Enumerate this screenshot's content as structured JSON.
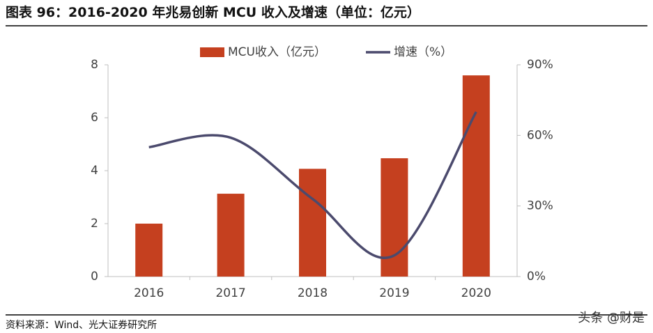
{
  "chart_data": {
    "type": "bar-line",
    "title": "图表 96：2016-2020 年兆易创新 MCU 收入及增速（单位：亿元）",
    "source": "资料来源：Wind、光大证券研究所",
    "watermark": "头条 @财是",
    "categories": [
      "2016",
      "2017",
      "2018",
      "2019",
      "2020"
    ],
    "series": [
      {
        "name": "MCU收入（亿元）",
        "type": "bar",
        "color": "#c5401f",
        "values": [
          2.0,
          3.13,
          4.07,
          4.47,
          7.6
        ]
      },
      {
        "name": "增速（%）",
        "type": "line",
        "axis": "y2",
        "color": "#4b4a6d",
        "values": [
          55,
          59,
          33,
          9,
          70
        ]
      }
    ],
    "ylim": [
      0,
      8
    ],
    "yticks": [
      0,
      2,
      4,
      6,
      8
    ],
    "y2lim": [
      0,
      90
    ],
    "y2ticks": [
      {
        "value": 0,
        "label": "0%"
      },
      {
        "value": 30,
        "label": "30%"
      },
      {
        "value": 60,
        "label": "60%"
      },
      {
        "value": 90,
        "label": "90%"
      }
    ],
    "grid": false
  }
}
